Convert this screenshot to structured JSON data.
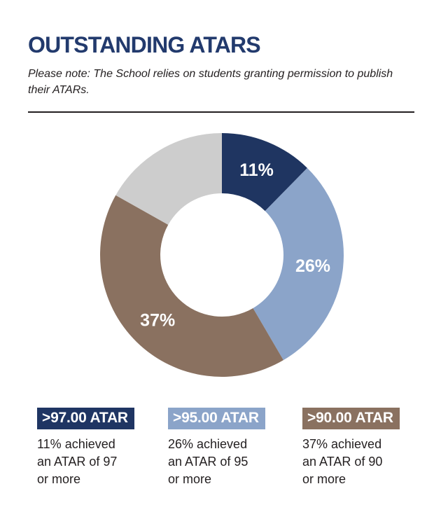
{
  "page": {
    "title": "OUTSTANDING ATARS",
    "note": "Please note: The School relies on students granting permission to publish\ntheir ATARs."
  },
  "chart_data": {
    "type": "pie",
    "subtype": "donut",
    "title": "OUTSTANDING ATARS",
    "start_angle_deg": 0,
    "direction": "clockwise",
    "inner_radius_ratio": 0.505,
    "legend_position": "bottom",
    "segments": [
      {
        "name": ">97.00 ATAR",
        "label": "11%",
        "value": 11,
        "color": "#1f3561",
        "label_color": "#ffffff"
      },
      {
        "name": ">95.00 ATAR",
        "label": "26%",
        "value": 26,
        "color": "#8ba4c9",
        "label_color": "#ffffff"
      },
      {
        "name": ">90.00 ATAR",
        "label": "37%",
        "value": 37,
        "color": "#8a7160",
        "label_color": "#ffffff"
      },
      {
        "name": "",
        "label": "",
        "value": 15,
        "color": "#cdcdcd",
        "label_color": "#ffffff"
      }
    ],
    "annotation": "Grey remainder segment is unlabeled; drawn arc corresponds to ~15 of a total of 89 units."
  },
  "legend": {
    "items": [
      {
        "badge": ">97.00 ATAR",
        "color": "#1f3563",
        "description": "11% achieved\nan ATAR of 97\nor more"
      },
      {
        "badge": ">95.00 ATAR",
        "color": "#8ba4c9",
        "description": "26% achieved\nan ATAR of 95\nor more"
      },
      {
        "badge": ">90.00 ATAR",
        "color": "#8a7160",
        "description": "37% achieved\nan ATAR of 90\nor more"
      }
    ]
  },
  "colors": {
    "title": "#223a6d",
    "body_text": "#231f20",
    "rule": "#231f20",
    "background": "#ffffff"
  }
}
